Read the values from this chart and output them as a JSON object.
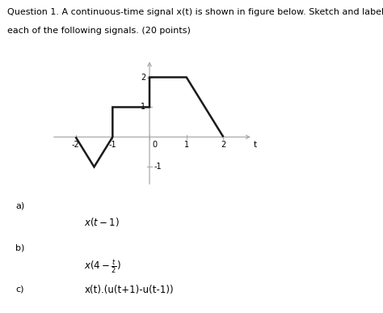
{
  "title_line1": "Question 1. A continuous-time signal x(t) is shown in figure below. Sketch and label carefully",
  "title_line2": "each of the following signals. (20 points)",
  "signal_x": [
    -2,
    -1.5,
    -1,
    -1,
    0,
    0,
    1,
    2
  ],
  "signal_y": [
    0,
    -1,
    0,
    1,
    1,
    2,
    2,
    0
  ],
  "axis_color": "#aaaaaa",
  "signal_color": "#1a1a1a",
  "signal_linewidth": 1.8,
  "xlim": [
    -2.7,
    2.9
  ],
  "ylim": [
    -1.7,
    2.7
  ],
  "xticks": [
    -2,
    -1,
    0,
    1,
    2
  ],
  "ytick_labels_custom": {
    "2": "2",
    "1": "1",
    "-1": "-1"
  },
  "xlabel_t": "t",
  "label_a": "a)",
  "label_b": "b)",
  "label_c": "c)",
  "formula_a": "$x(t-1)$",
  "formula_b": "$x(4-\\frac{t}{2})$",
  "formula_c": "x(t).(u(t+1)-u(t-1))",
  "background_color": "#ffffff",
  "fig_width": 4.74,
  "fig_height": 3.87,
  "text_fontsize": 8.0,
  "formula_fontsize": 8.5
}
